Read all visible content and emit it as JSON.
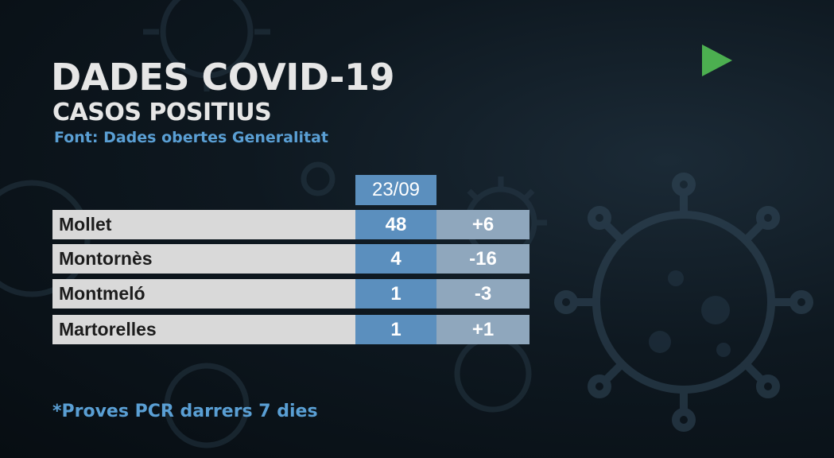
{
  "header": {
    "title": "DADES COVID-19",
    "subtitle": "CASOS POSITIUS",
    "source": "Font: Dades obertes Generalitat"
  },
  "table": {
    "date": "23/09",
    "rows": [
      {
        "municipality": "Mollet",
        "cases": "48",
        "change": "+6"
      },
      {
        "municipality": "Montornès",
        "cases": "4",
        "change": "-16"
      },
      {
        "municipality": "Montmeló",
        "cases": "1",
        "change": "-3"
      },
      {
        "municipality": "Martorelles",
        "cases": "1",
        "change": "+1"
      }
    ]
  },
  "footnote": "*Proves PCR darrers 7 dies",
  "icons": {
    "play": "play-icon",
    "background": "virus-illustration"
  },
  "colors": {
    "accent_blue": "#5b8fbe",
    "change_blue": "#8fa7bd",
    "name_gray": "#d9d9d9",
    "text_blue": "#5a9fd4",
    "play_green": "#4caf50"
  }
}
